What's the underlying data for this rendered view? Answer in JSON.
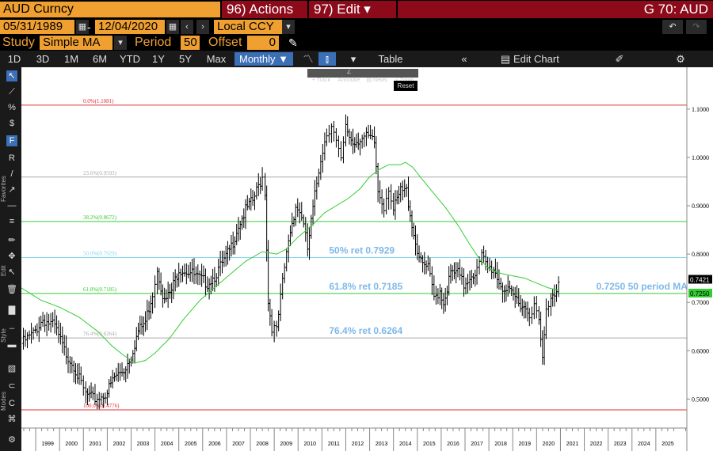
{
  "header": {
    "security": "AUD Curncy",
    "actions_label": "96) Actions ▾",
    "edit_label": "97) Edit ▾",
    "right_title": "G 70: AUD",
    "start_date": "05/31/1989",
    "end_date": "12/04/2020",
    "currency": "Local CCY",
    "study_label": "Study",
    "study_value": "Simple MA",
    "period_label": "Period",
    "period_value": "50",
    "offset_label": "Offset",
    "offset_value": "0"
  },
  "toolbar": {
    "ranges": [
      "1D",
      "3D",
      "1M",
      "6M",
      "YTD",
      "1Y",
      "5Y",
      "Max"
    ],
    "interval": "Monthly ▼",
    "table_label": "Table",
    "edit_chart_label": "Edit Chart"
  },
  "chart_tools": [
    "Track",
    "Annotate",
    "News",
    "Zoom"
  ],
  "reset_label": "Reset",
  "sidebar_labels": [
    "Favorites",
    "Edit",
    "Style",
    "Modes"
  ],
  "colors": {
    "accent": "#f0a030",
    "action_red": "#8c0a1a",
    "price": "#000000",
    "ma": "#33cc33",
    "fib_red": "#e03030",
    "fib_gray": "#999999",
    "fib_green": "#33cc33",
    "fib_cyan": "#7fd8e8",
    "annotation": "#7fb8e8"
  },
  "chart_data": {
    "type": "ohlc",
    "interval": "monthly",
    "x_range": [
      1998.4,
      2026.3
    ],
    "ylim": [
      0.44,
      1.18
    ],
    "x_ticks": [
      "1999",
      "2000",
      "2001",
      "2002",
      "2003",
      "2004",
      "2005",
      "2006",
      "2007",
      "2008",
      "2009",
      "2010",
      "2011",
      "2012",
      "2013",
      "2014",
      "2015",
      "2016",
      "2017",
      "2018",
      "2019",
      "2020",
      "2021",
      "2022",
      "2023",
      "2024",
      "2025"
    ],
    "y_ticks": [
      "1.1000",
      "1.0000",
      "0.9000",
      "0.8000",
      "0.7000",
      "0.6000",
      "0.5000"
    ],
    "series": [
      {
        "name": "AUD Curncy",
        "color": "#000000",
        "points": [
          [
            1998.4,
            0.615
          ],
          [
            1998.9,
            0.635
          ],
          [
            1999.3,
            0.665
          ],
          [
            1999.8,
            0.65
          ],
          [
            2000.2,
            0.6
          ],
          [
            2000.6,
            0.57
          ],
          [
            2000.9,
            0.53
          ],
          [
            2001.1,
            0.51
          ],
          [
            2001.4,
            0.5
          ],
          [
            2001.75,
            0.505
          ],
          [
            2002.0,
            0.515
          ],
          [
            2002.3,
            0.545
          ],
          [
            2002.7,
            0.56
          ],
          [
            2003.0,
            0.59
          ],
          [
            2003.3,
            0.64
          ],
          [
            2003.6,
            0.66
          ],
          [
            2003.9,
            0.72
          ],
          [
            2004.1,
            0.77
          ],
          [
            2004.4,
            0.7
          ],
          [
            2004.7,
            0.725
          ],
          [
            2005.0,
            0.77
          ],
          [
            2005.4,
            0.765
          ],
          [
            2005.8,
            0.75
          ],
          [
            2006.2,
            0.74
          ],
          [
            2006.5,
            0.755
          ],
          [
            2006.9,
            0.785
          ],
          [
            2007.2,
            0.815
          ],
          [
            2007.5,
            0.86
          ],
          [
            2007.8,
            0.89
          ],
          [
            2008.1,
            0.91
          ],
          [
            2008.5,
            0.96
          ],
          [
            2008.62,
            0.93
          ],
          [
            2008.75,
            0.7
          ],
          [
            2008.9,
            0.65
          ],
          [
            2009.1,
            0.64
          ],
          [
            2009.35,
            0.74
          ],
          [
            2009.6,
            0.83
          ],
          [
            2009.9,
            0.9
          ],
          [
            2010.15,
            0.88
          ],
          [
            2010.4,
            0.81
          ],
          [
            2010.7,
            0.92
          ],
          [
            2010.95,
            1.0
          ],
          [
            2011.2,
            1.05
          ],
          [
            2011.4,
            1.07
          ],
          [
            2011.6,
            1.03
          ],
          [
            2011.8,
            0.99
          ],
          [
            2012.0,
            1.06
          ],
          [
            2012.3,
            1.03
          ],
          [
            2012.6,
            1.04
          ],
          [
            2012.95,
            1.04
          ],
          [
            2013.2,
            1.03
          ],
          [
            2013.35,
            0.93
          ],
          [
            2013.6,
            0.9
          ],
          [
            2013.8,
            0.94
          ],
          [
            2014.0,
            0.89
          ],
          [
            2014.3,
            0.93
          ],
          [
            2014.55,
            0.93
          ],
          [
            2014.85,
            0.84
          ],
          [
            2015.15,
            0.78
          ],
          [
            2015.45,
            0.77
          ],
          [
            2015.7,
            0.71
          ],
          [
            2015.95,
            0.725
          ],
          [
            2016.1,
            0.7
          ],
          [
            2016.4,
            0.76
          ],
          [
            2016.7,
            0.76
          ],
          [
            2016.95,
            0.735
          ],
          [
            2017.2,
            0.755
          ],
          [
            2017.5,
            0.765
          ],
          [
            2017.7,
            0.795
          ],
          [
            2017.95,
            0.77
          ],
          [
            2018.2,
            0.77
          ],
          [
            2018.5,
            0.735
          ],
          [
            2018.8,
            0.72
          ],
          [
            2019.1,
            0.71
          ],
          [
            2019.4,
            0.695
          ],
          [
            2019.7,
            0.68
          ],
          [
            2019.9,
            0.69
          ],
          [
            2020.1,
            0.66
          ],
          [
            2020.25,
            0.58
          ],
          [
            2020.4,
            0.68
          ],
          [
            2020.6,
            0.715
          ],
          [
            2020.75,
            0.72
          ],
          [
            2020.92,
            0.742
          ]
        ]
      },
      {
        "name": "50 period MA",
        "color": "#33cc33",
        "points": [
          [
            1998.4,
            0.73
          ],
          [
            1999.2,
            0.705
          ],
          [
            2000.0,
            0.69
          ],
          [
            2000.8,
            0.67
          ],
          [
            2001.6,
            0.64
          ],
          [
            2002.2,
            0.61
          ],
          [
            2002.7,
            0.59
          ],
          [
            2003.2,
            0.575
          ],
          [
            2003.6,
            0.58
          ],
          [
            2004.0,
            0.595
          ],
          [
            2004.6,
            0.625
          ],
          [
            2005.2,
            0.665
          ],
          [
            2005.9,
            0.705
          ],
          [
            2006.6,
            0.735
          ],
          [
            2007.2,
            0.76
          ],
          [
            2007.8,
            0.785
          ],
          [
            2008.5,
            0.805
          ],
          [
            2009.1,
            0.8
          ],
          [
            2009.5,
            0.81
          ],
          [
            2010.0,
            0.835
          ],
          [
            2010.6,
            0.86
          ],
          [
            2011.1,
            0.885
          ],
          [
            2011.6,
            0.9
          ],
          [
            2012.1,
            0.915
          ],
          [
            2012.6,
            0.935
          ],
          [
            2013.0,
            0.96
          ],
          [
            2013.4,
            0.975
          ],
          [
            2013.8,
            0.985
          ],
          [
            2014.3,
            0.985
          ],
          [
            2014.5,
            0.99
          ],
          [
            2014.8,
            0.98
          ],
          [
            2015.2,
            0.955
          ],
          [
            2015.7,
            0.925
          ],
          [
            2016.2,
            0.895
          ],
          [
            2016.7,
            0.86
          ],
          [
            2017.2,
            0.82
          ],
          [
            2017.6,
            0.79
          ],
          [
            2018.0,
            0.77
          ],
          [
            2018.5,
            0.76
          ],
          [
            2019.0,
            0.755
          ],
          [
            2019.5,
            0.75
          ],
          [
            2020.0,
            0.74
          ],
          [
            2020.5,
            0.73
          ],
          [
            2020.92,
            0.725
          ]
        ]
      }
    ],
    "fib_levels": [
      {
        "label": "0.0%(1.1081)",
        "value": 1.1081,
        "color": "#e03030"
      },
      {
        "label": "23.6%(0.9593)",
        "value": 0.9593,
        "color": "#aaaaaa"
      },
      {
        "label": "38.2%(0.8672)",
        "value": 0.8672,
        "color": "#33cc33"
      },
      {
        "label": "50.0%(0.7929)",
        "value": 0.7929,
        "color": "#7fd8e8"
      },
      {
        "label": "61.8%(0.7185)",
        "value": 0.7185,
        "color": "#33cc33"
      },
      {
        "label": "76.4%(0.6264)",
        "value": 0.6264,
        "color": "#aaaaaa"
      },
      {
        "label": "100.0%(0.4776)",
        "value": 0.4776,
        "color": "#e03030"
      }
    ],
    "annotations": [
      {
        "text": "50% ret 0.7929",
        "value": 0.7929,
        "x": 2011.3
      },
      {
        "text": "61.8% ret 0.7185",
        "value": 0.7185,
        "x": 2011.3
      },
      {
        "text": "76.4% ret 0.6264",
        "value": 0.6264,
        "x": 2011.3
      },
      {
        "text": "0.7250 50 period MA",
        "value": 0.7185,
        "x": 2022.5
      }
    ],
    "last_price_labels": [
      {
        "text": "0.7421",
        "value": 0.7421,
        "color": "#000000",
        "textcolor": "#ffffff"
      },
      {
        "text": "0.7250",
        "value": 0.725,
        "color": "#33cc33",
        "textcolor": "#000000"
      }
    ]
  }
}
